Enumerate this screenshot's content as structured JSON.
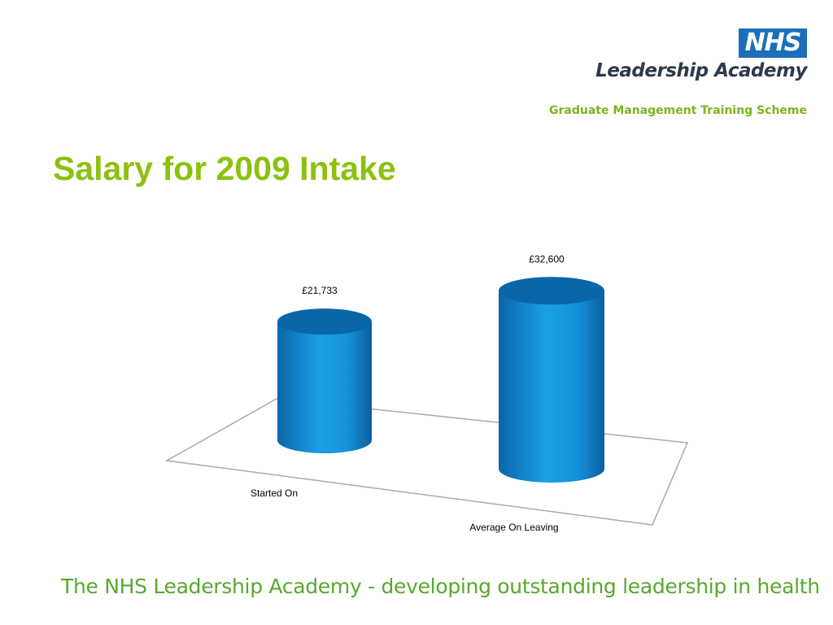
{
  "logo": {
    "badge": "NHS",
    "name": "Leadership Academy",
    "scheme": "Graduate Management Training Scheme"
  },
  "slide_title": "Salary for 2009 Intake",
  "footer": "The NHS Leadership Academy - developing outstanding leadership in health",
  "colors": {
    "bar": "#1591d8",
    "bar_dark": "#0a66a8",
    "title": "#8cc10f",
    "footer": "#58a82d",
    "nhs_blue": "#1b6fba"
  },
  "chart_data": {
    "type": "bar",
    "style": "3d-cylinder",
    "categories": [
      "Started On",
      "Average On Leaving"
    ],
    "values": [
      21733,
      32600
    ],
    "data_labels": [
      "£21,733",
      "£32,600"
    ],
    "title": "",
    "xlabel": "",
    "ylabel": "",
    "grid": false,
    "legend": "none"
  }
}
